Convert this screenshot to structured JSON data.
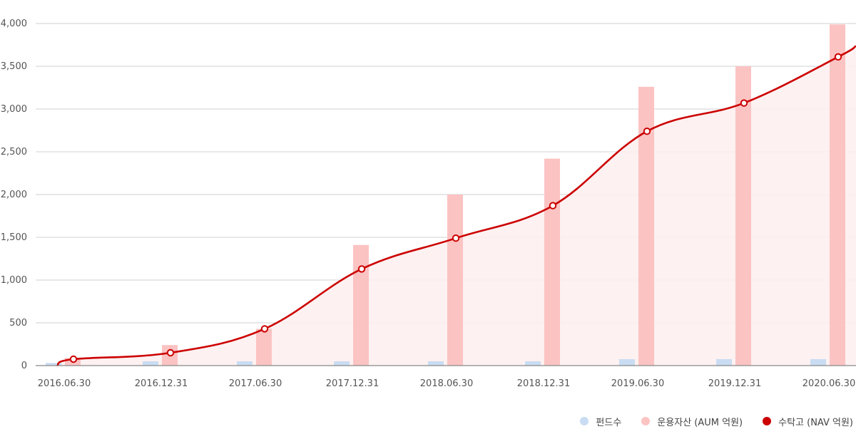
{
  "chart_data": {
    "type": "bar",
    "categories": [
      "2016.06.30",
      "2016.12.31",
      "2017.06.30",
      "2017.12.31",
      "2018.06.30",
      "2018.12.31",
      "2019.06.30",
      "2019.12.31",
      "2020.06.30"
    ],
    "series": [
      {
        "name": "펀드수",
        "type": "bar",
        "color": "#c9dcf2",
        "values": [
          30,
          50,
          50,
          50,
          50,
          50,
          75,
          75,
          75
        ]
      },
      {
        "name": "운용자산 (AUM 억원)",
        "type": "bar",
        "color": "#fcc3c3",
        "values": [
          90,
          240,
          430,
          1410,
          2000,
          2420,
          3260,
          3500,
          3990
        ]
      },
      {
        "name": "수탁고 (NAV 억원)",
        "type": "line",
        "color": "#cc0000",
        "fill": "#fdeeee",
        "values": [
          75,
          150,
          430,
          1130,
          1490,
          1870,
          2740,
          3070,
          3610
        ]
      }
    ],
    "y_ticks": [
      "0",
      "500",
      "1,000",
      "1,500",
      "2,000",
      "2,500",
      "3,000",
      "3,500",
      "4,000"
    ],
    "ylim": [
      0,
      4000
    ],
    "grid": true,
    "legend_position": "bottom-right",
    "title": "",
    "xlabel": "",
    "ylabel": ""
  }
}
